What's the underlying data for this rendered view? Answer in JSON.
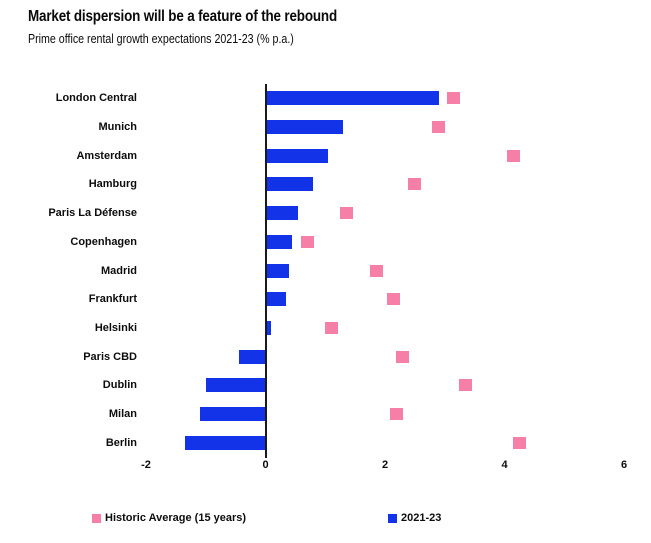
{
  "header": {
    "title": "Market dispersion will be a feature of the rebound",
    "subtitle": "Prime office rental growth expectations 2021-23 (% p.a.)"
  },
  "colors": {
    "bar_blue": "#1233e8",
    "marker_pink": "#f57fa6",
    "axis_line": "#1a1a1a",
    "text": "#0d0d0d",
    "background": "#ffffff"
  },
  "legend": {
    "items": [
      {
        "label": "Historic Average (15 years)",
        "color": "#f57fa6",
        "shape": "square"
      },
      {
        "label": "2021-23",
        "color": "#1233e8",
        "shape": "square"
      }
    ]
  },
  "chart_data": {
    "type": "bar",
    "orientation": "horizontal",
    "title": "Market dispersion will be a feature of the rebound",
    "subtitle": "Prime office rental growth expectations 2021-23 (% p.a.)",
    "categories": [
      "London Central",
      "Munich",
      "Amsterdam",
      "Hamburg",
      "Paris La Défense",
      "Copenhagen",
      "Madrid",
      "Frankfurt",
      "Helsinki",
      "Paris CBD",
      "Dublin",
      "Milan",
      "Berlin"
    ],
    "series": [
      {
        "name": "2021-23",
        "style": "bar",
        "color": "#1233e8",
        "values": [
          2.9,
          1.3,
          1.05,
          0.8,
          0.55,
          0.45,
          0.4,
          0.35,
          0.1,
          -0.45,
          -1.0,
          -1.1,
          -1.35
        ]
      },
      {
        "name": "Historic Average (15 years)",
        "style": "square-marker",
        "color": "#f57fa6",
        "values": [
          3.15,
          2.9,
          4.15,
          2.5,
          1.35,
          0.7,
          1.85,
          2.15,
          1.1,
          2.3,
          3.35,
          2.2,
          4.25
        ]
      }
    ],
    "xlabel": "",
    "ylabel": "",
    "xlim": [
      -2,
      6
    ],
    "xticks": [
      -2,
      0,
      2,
      4,
      6
    ],
    "grid": false,
    "zero_line": true,
    "legend_position": "bottom"
  }
}
